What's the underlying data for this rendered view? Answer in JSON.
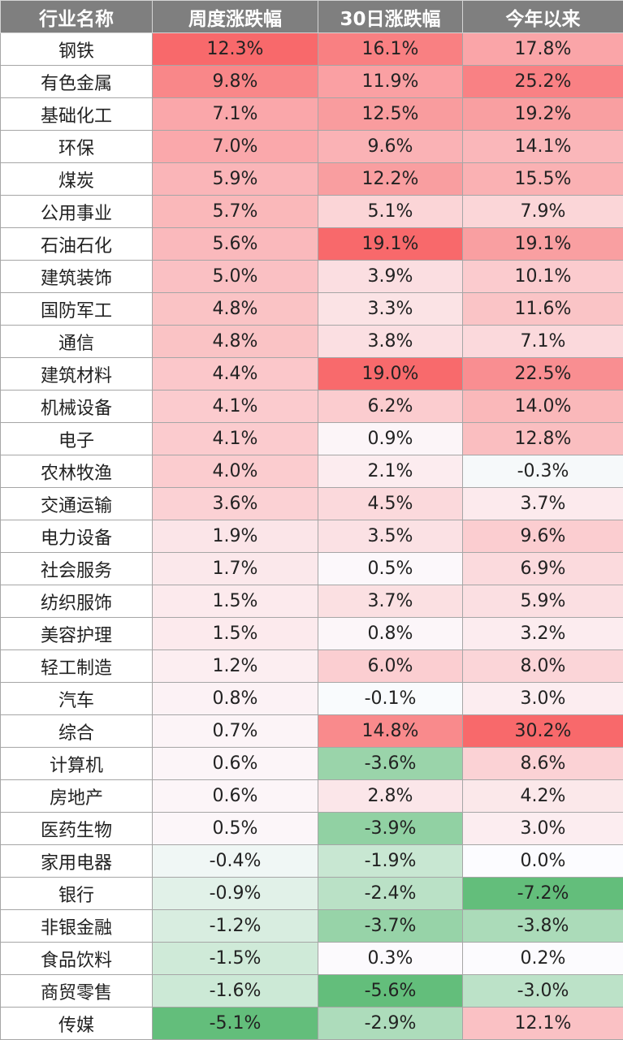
{
  "chart_data": {
    "type": "table",
    "columns": [
      "行业名称",
      "周度涨跌幅",
      "30日涨跌幅",
      "今年以来"
    ],
    "value_unit": "%",
    "colors": {
      "positive_max": "#f8696b",
      "neutral": "#fcfcff",
      "negative_max": "#63be7b"
    },
    "rows": [
      {
        "name": "钢铁",
        "values": [
          12.3,
          16.1,
          17.8
        ]
      },
      {
        "name": "有色金属",
        "values": [
          9.8,
          11.9,
          25.2
        ]
      },
      {
        "name": "基础化工",
        "values": [
          7.1,
          12.5,
          19.2
        ]
      },
      {
        "name": "环保",
        "values": [
          7.0,
          9.6,
          14.1
        ]
      },
      {
        "name": "煤炭",
        "values": [
          5.9,
          12.2,
          15.5
        ]
      },
      {
        "name": "公用事业",
        "values": [
          5.7,
          5.1,
          7.9
        ]
      },
      {
        "name": "石油石化",
        "values": [
          5.6,
          19.1,
          19.1
        ]
      },
      {
        "name": "建筑装饰",
        "values": [
          5.0,
          3.9,
          10.1
        ]
      },
      {
        "name": "国防军工",
        "values": [
          4.8,
          3.3,
          11.6
        ]
      },
      {
        "name": "通信",
        "values": [
          4.8,
          3.8,
          7.1
        ]
      },
      {
        "name": "建筑材料",
        "values": [
          4.4,
          19.0,
          22.5
        ]
      },
      {
        "name": "机械设备",
        "values": [
          4.1,
          6.2,
          14.0
        ]
      },
      {
        "name": "电子",
        "values": [
          4.1,
          0.9,
          12.8
        ]
      },
      {
        "name": "农林牧渔",
        "values": [
          4.0,
          2.1,
          -0.3
        ]
      },
      {
        "name": "交通运输",
        "values": [
          3.6,
          4.5,
          3.7
        ]
      },
      {
        "name": "电力设备",
        "values": [
          1.9,
          3.5,
          9.6
        ]
      },
      {
        "name": "社会服务",
        "values": [
          1.7,
          0.5,
          6.9
        ]
      },
      {
        "name": "纺织服饰",
        "values": [
          1.5,
          3.7,
          5.9
        ]
      },
      {
        "name": "美容护理",
        "values": [
          1.5,
          0.8,
          3.2
        ]
      },
      {
        "name": "轻工制造",
        "values": [
          1.2,
          6.0,
          8.0
        ]
      },
      {
        "name": "汽车",
        "values": [
          0.8,
          -0.1,
          3.0
        ]
      },
      {
        "name": "综合",
        "values": [
          0.7,
          14.8,
          30.2
        ]
      },
      {
        "name": "计算机",
        "values": [
          0.6,
          -3.6,
          8.6
        ]
      },
      {
        "name": "房地产",
        "values": [
          0.6,
          2.8,
          4.2
        ]
      },
      {
        "name": "医药生物",
        "values": [
          0.5,
          -3.9,
          3.0
        ]
      },
      {
        "name": "家用电器",
        "values": [
          -0.4,
          -1.9,
          0.0
        ]
      },
      {
        "name": "银行",
        "values": [
          -0.9,
          -2.4,
          -7.2
        ]
      },
      {
        "name": "非银金融",
        "values": [
          -1.2,
          -3.7,
          -3.8
        ]
      },
      {
        "name": "食品饮料",
        "values": [
          -1.5,
          0.3,
          0.2
        ]
      },
      {
        "name": "商贸零售",
        "values": [
          -1.6,
          -5.6,
          -3.0
        ]
      },
      {
        "name": "传媒",
        "values": [
          -5.1,
          -2.9,
          12.1
        ]
      }
    ]
  }
}
